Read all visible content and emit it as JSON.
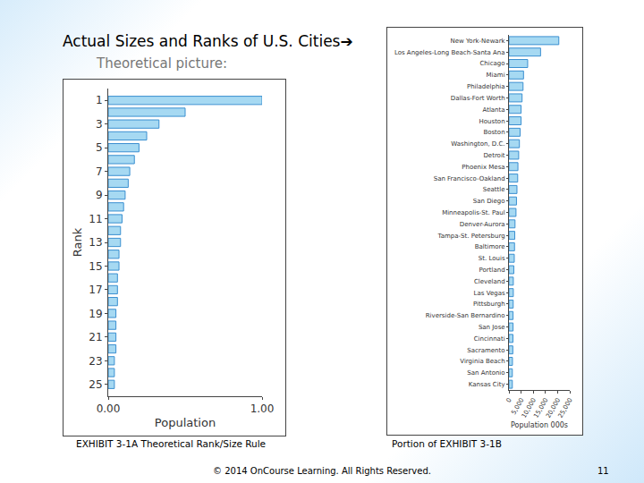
{
  "slide": {
    "title": "Actual Sizes and Ranks of U.S. Cities➔",
    "subtitle": "Theoretical picture:",
    "caption_left": "EXHIBIT 3-1A Theoretical Rank/Size Rule",
    "caption_right": "Portion of  EXHIBIT 3-1B",
    "footer": "© 2014 OnCourse Learning. All Rights Reserved.",
    "page": "11"
  },
  "chart_data": [
    {
      "type": "bar",
      "orientation": "horizontal",
      "categories": [
        1,
        2,
        3,
        4,
        5,
        6,
        7,
        8,
        9,
        10,
        11,
        12,
        13,
        14,
        15,
        16,
        17,
        18,
        19,
        20,
        21,
        22,
        23,
        24,
        25
      ],
      "values": [
        1.0,
        0.5,
        0.33,
        0.25,
        0.2,
        0.17,
        0.14,
        0.13,
        0.11,
        0.1,
        0.09,
        0.08,
        0.08,
        0.07,
        0.07,
        0.06,
        0.06,
        0.06,
        0.05,
        0.05,
        0.05,
        0.05,
        0.04,
        0.04,
        0.04
      ],
      "xlim": [
        0,
        1
      ],
      "xticks": [
        {
          "value": 0,
          "label": "0.00"
        },
        {
          "value": 1,
          "label": "1.00"
        }
      ],
      "ylim": [
        0,
        26
      ],
      "yticks": [
        1,
        3,
        5,
        7,
        9,
        11,
        13,
        15,
        17,
        19,
        21,
        23,
        25
      ],
      "x_label": "Population",
      "y_label": "Rank",
      "color": "#a6d9f2",
      "grid": false
    },
    {
      "type": "bar",
      "orientation": "horizontal",
      "categories": [
        "New York-Newark",
        "Los Angeles-Long Beach-Santa Ana",
        "Chicago",
        "Miami",
        "Philadelphia",
        "Dallas-Fort Worth",
        "Atlanta",
        "Houston",
        "Boston",
        "Washington, D.C.",
        "Detroit",
        "Phoenix Mesa",
        "San Francisco-Oakland",
        "Seattle",
        "San Diego",
        "Minneapolis-St. Paul",
        "Denver-Aurora",
        "Tampa-St. Petersburg",
        "Baltimore",
        "St. Louis",
        "Portland",
        "Cleveland",
        "Las Vegas",
        "Pittsburgh",
        "Riverside-San Bernardino",
        "San Jose",
        "Cincinnati",
        "Sacramento",
        "Virginia Beach",
        "San Antonio",
        "Kansas City"
      ],
      "values": [
        20500,
        13000,
        7700,
        6000,
        5800,
        5400,
        5000,
        5000,
        4600,
        4300,
        4000,
        3700,
        3600,
        3300,
        3100,
        2900,
        2500,
        2400,
        2300,
        2200,
        2000,
        1800,
        1800,
        1750,
        1700,
        1700,
        1650,
        1600,
        1450,
        1400,
        1400
      ],
      "xlim": [
        0,
        25000
      ],
      "xticks": [
        0,
        {
          "value": 5000,
          "label": "5,000"
        },
        {
          "value": 10000,
          "label": "10,000"
        },
        {
          "value": 15000,
          "label": "15,000"
        },
        {
          "value": 20000,
          "label": "20,000"
        },
        {
          "value": 25000,
          "label": "25,000"
        }
      ],
      "x_label": "Population 000s",
      "color": "#a6d9f2",
      "grid": false
    }
  ]
}
